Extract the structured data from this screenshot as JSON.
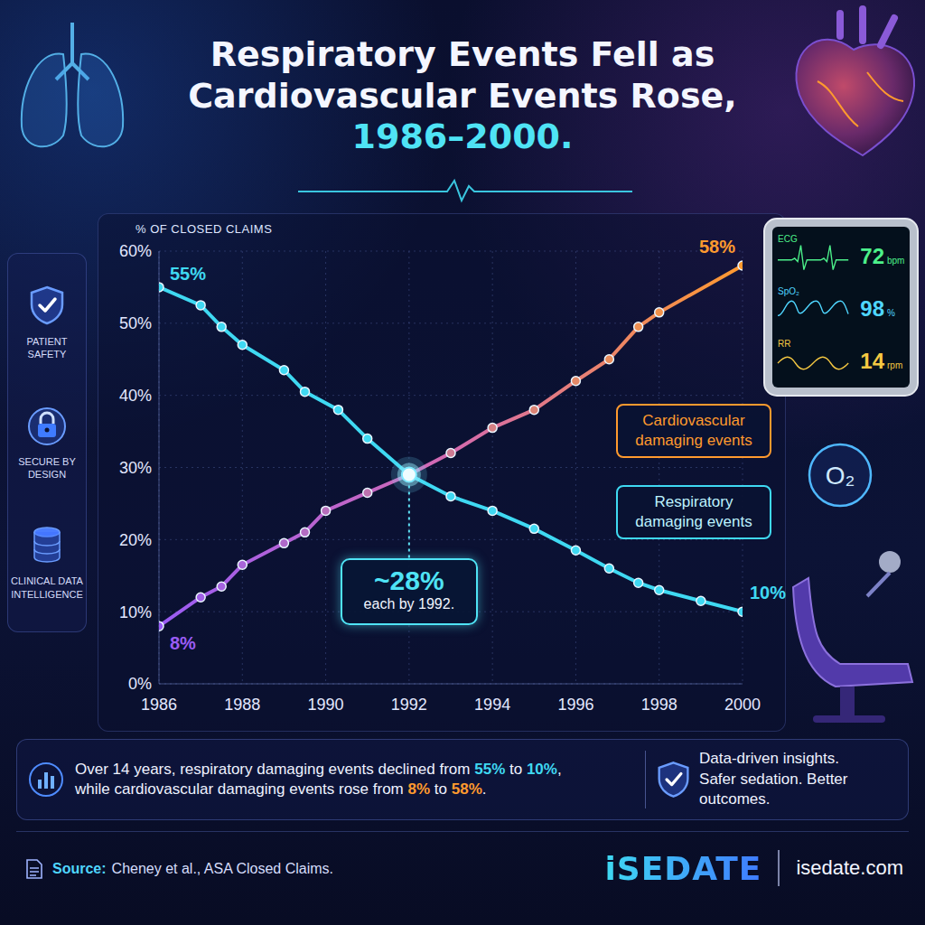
{
  "title": "Respiratory Events Fell as Cardiovascular Events Rose,",
  "title_highlight": "1986–2000.",
  "chart_data": {
    "type": "line",
    "y_label": "% OF CLOSED CLAIMS",
    "xlim": [
      1986,
      2000
    ],
    "xticks": [
      1986,
      1988,
      1990,
      1992,
      1994,
      1996,
      1998,
      2000
    ],
    "ylim": [
      0,
      60
    ],
    "yticks": [
      {
        "value": 0,
        "label": "0%"
      },
      {
        "value": 10,
        "label": "10%"
      },
      {
        "value": 20,
        "label": "20%"
      },
      {
        "value": 30,
        "label": "30%"
      },
      {
        "value": 40,
        "label": "40%"
      },
      {
        "value": 50,
        "label": "50%"
      },
      {
        "value": 60,
        "label": "60%"
      }
    ],
    "grid": true,
    "series": [
      {
        "name": "Respiratory damaging events",
        "color": "#3fd9f2",
        "marker": "circle",
        "x": [
          1986,
          1987,
          1987.5,
          1988,
          1989,
          1989.5,
          1990.3,
          1991,
          1992,
          1993,
          1994,
          1995,
          1996,
          1996.8,
          1997.5,
          1998,
          1999,
          2000
        ],
        "values": [
          55,
          52.5,
          49.5,
          47,
          43.5,
          40.5,
          38,
          34,
          29,
          26,
          24,
          21.5,
          18.5,
          16,
          14,
          13,
          11.5,
          10
        ],
        "value_labels": [
          "55%",
          null,
          null,
          null,
          null,
          null,
          null,
          null,
          null,
          null,
          null,
          null,
          null,
          null,
          null,
          null,
          null,
          "10%"
        ]
      },
      {
        "name": "Cardiovascular damaging events",
        "color": "#ff9a2e",
        "marker": "circle",
        "x": [
          1986,
          1987,
          1987.5,
          1988,
          1989,
          1989.5,
          1990,
          1991,
          1992,
          1993,
          1994,
          1995,
          1996,
          1996.8,
          1997.5,
          1998,
          2000
        ],
        "values": [
          8,
          12,
          13.5,
          16.5,
          19.5,
          21,
          24,
          26.5,
          29,
          32,
          35.5,
          38,
          42,
          45,
          49.5,
          51.5,
          58
        ],
        "value_labels": [
          "8%",
          null,
          null,
          null,
          null,
          null,
          null,
          null,
          null,
          null,
          null,
          null,
          null,
          null,
          null,
          null,
          "58%"
        ]
      }
    ],
    "annotation": {
      "x": 1992,
      "text": "~28%",
      "subtext": "each by 1992."
    }
  },
  "side_panel": [
    "PATIENT SAFETY",
    "SECURE BY DESIGN",
    "CLINICAL DATA INTELLIGENCE"
  ],
  "monitor": {
    "ecg_label": "ECG",
    "hr": 72,
    "hr_unit": "bpm",
    "spo2_label": "SpO₂",
    "spo2": 98,
    "spo2_unit": "%",
    "rr_label": "RR",
    "rr": 14,
    "rr_unit": "rpm"
  },
  "o2_label": "O₂",
  "summary_lines": [
    [
      "Over 14 years, respiratory damaging events declined from ",
      "55%",
      " to ",
      "10%",
      ","
    ],
    [
      "while cardiovascular damaging events rose from ",
      "8%",
      " to ",
      "58%",
      "."
    ]
  ],
  "tagline": [
    "Data-driven insights.",
    "Safer sedation. Better outcomes."
  ],
  "source_label": "Source:",
  "source": "Cheney et al., ASA Closed Claims.",
  "brand": "iSEDATE",
  "website": "isedate.com"
}
